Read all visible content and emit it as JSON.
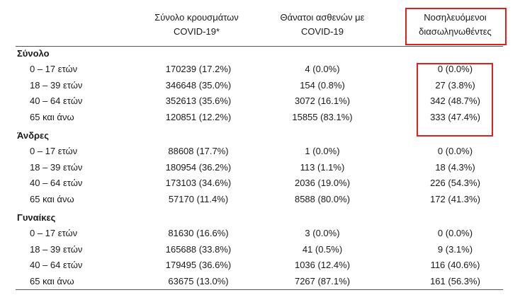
{
  "header": {
    "cases": [
      "Σύνολο κρουσμάτων",
      "COVID-19*"
    ],
    "deaths": [
      "Θάνατοι ασθενών με",
      "COVID-19"
    ],
    "hosp": [
      "Νοσηλευόμενοι",
      "διασωληνωθέντες"
    ]
  },
  "sections": [
    {
      "title": "Σύνολο",
      "rows": [
        {
          "age": "0 – 17 ετών",
          "cases": "170239 (17.2%)",
          "deaths": "4 (0.0%)",
          "hosp": "0 (0.0%)"
        },
        {
          "age": "18 – 39 ετών",
          "cases": "346648 (35.0%)",
          "deaths": "154 (0.8%)",
          "hosp": "27 (3.8%)"
        },
        {
          "age": "40 – 64 ετών",
          "cases": "352613 (35.6%)",
          "deaths": "3072 (16.1%)",
          "hosp": "342 (48.7%)"
        },
        {
          "age": "65 και άνω",
          "cases": "120851 (12.2%)",
          "deaths": "15855 (83.1%)",
          "hosp": "333 (47.4%)"
        }
      ]
    },
    {
      "title": "Άνδρες",
      "rows": [
        {
          "age": "0 – 17 ετών",
          "cases": "88608 (17.7%)",
          "deaths": "1 (0.0%)",
          "hosp": "0 (0.0%)"
        },
        {
          "age": "18 – 39 ετών",
          "cases": "180954 (36.2%)",
          "deaths": "113 (1.1%)",
          "hosp": "18 (4.3%)"
        },
        {
          "age": "40 – 64 ετών",
          "cases": "173103 (34.6%)",
          "deaths": "2036 (19.0%)",
          "hosp": "226 (54.3%)"
        },
        {
          "age": "65 και άνω",
          "cases": "57170 (11.4%)",
          "deaths": "8588 (80.0%)",
          "hosp": "172 (41.3%)"
        }
      ]
    },
    {
      "title": "Γυναίκες",
      "rows": [
        {
          "age": "0 – 17 ετών",
          "cases": "81630 (16.6%)",
          "deaths": "3 (0.0%)",
          "hosp": "0 (0.0%)"
        },
        {
          "age": "18 – 39 ετών",
          "cases": "165688 (33.8%)",
          "deaths": "41 (0.5%)",
          "hosp": "9 (3.1%)"
        },
        {
          "age": "40 – 64 ετών",
          "cases": "179495 (36.6%)",
          "deaths": "1036 (12.4%)",
          "hosp": "116 (40.6%)"
        },
        {
          "age": "65 και άνω",
          "cases": "63675 (13.0%)",
          "deaths": "7267 (87.1%)",
          "hosp": "161 (56.3%)"
        }
      ]
    }
  ],
  "highlight_color": "#e02020"
}
